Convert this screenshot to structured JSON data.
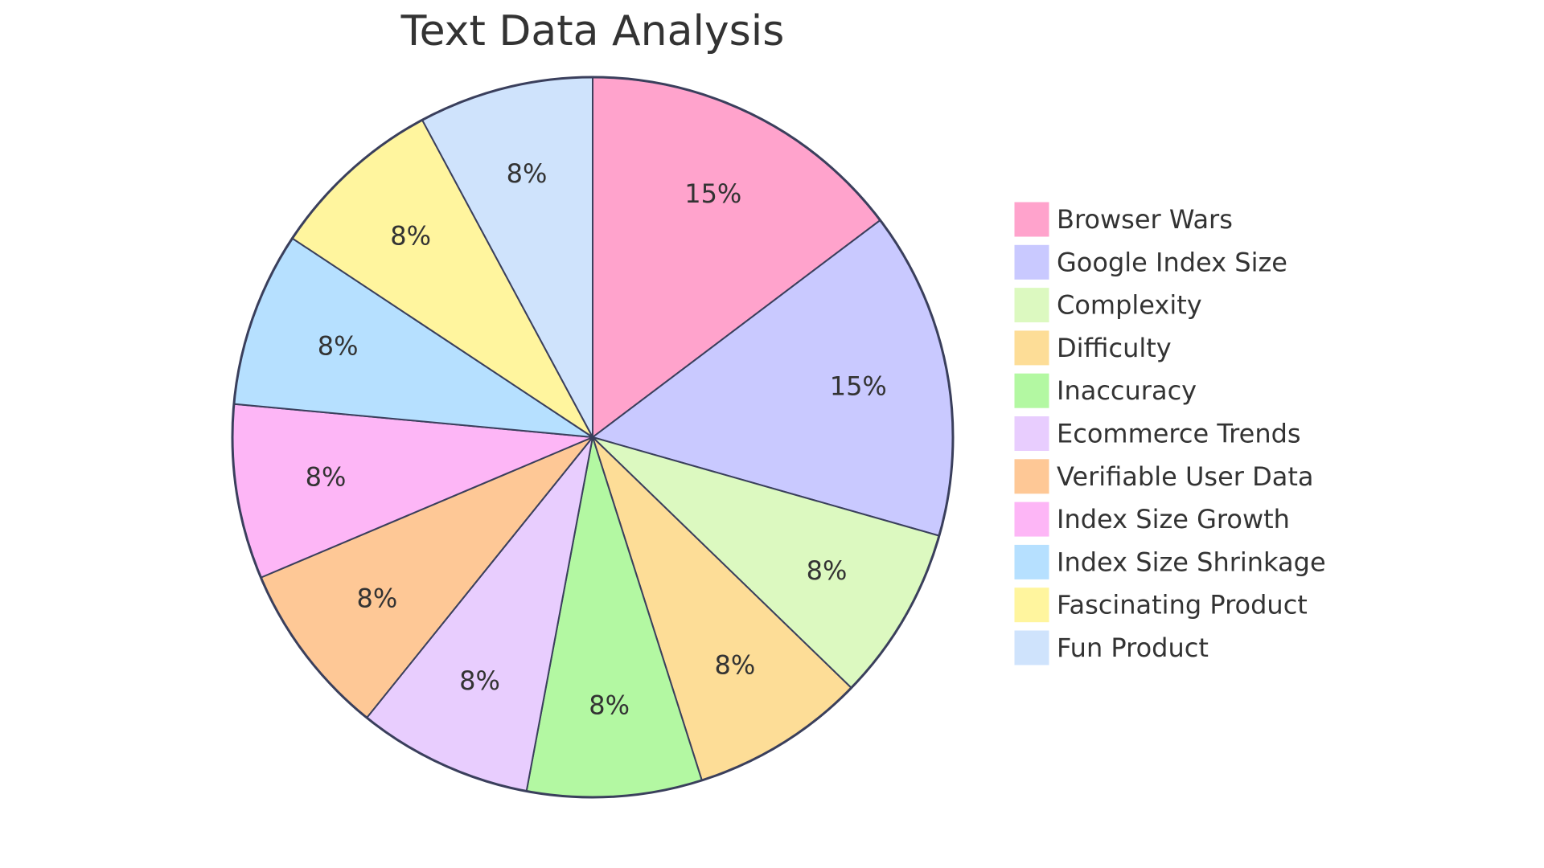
{
  "chart_data": {
    "type": "pie",
    "title": "Text Data Analysis",
    "categories": [
      "Browser Wars",
      "Google Index Size",
      "Complexity",
      "Difficulty",
      "Inaccuracy",
      "Ecommerce Trends",
      "Verifiable User Data",
      "Index Size Growth",
      "Index Size Shrinkage",
      "Fascinating Product",
      "Fun Product"
    ],
    "values": [
      15,
      15,
      8,
      8,
      8,
      8,
      8,
      8,
      8,
      8,
      8
    ],
    "value_labels": [
      "15%",
      "15%",
      "8%",
      "8%",
      "8%",
      "8%",
      "8%",
      "8%",
      "8%",
      "8%",
      "8%"
    ],
    "colors": [
      "#ffa3cc",
      "#c9c9ff",
      "#dcf9c0",
      "#fddd97",
      "#b3f8a2",
      "#e8cdfe",
      "#fec896",
      "#fdb6f6",
      "#b6e0ff",
      "#fff59e",
      "#cfe3fc"
    ],
    "legend": "right"
  }
}
